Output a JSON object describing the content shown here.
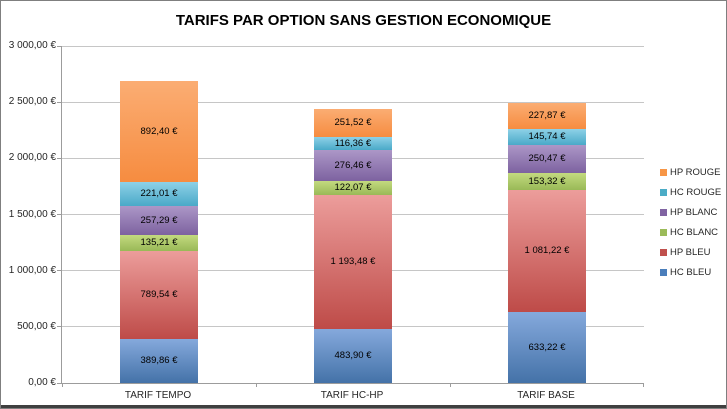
{
  "chart_data": {
    "type": "bar",
    "stacked": true,
    "title": "TARIFS PAR OPTION SANS GESTION ECONOMIQUE",
    "categories": [
      "TARIF TEMPO",
      "TARIF HC-HP",
      "TARIF BASE"
    ],
    "series": [
      {
        "name": "HC BLEU",
        "color": "#4A7EBB",
        "gradient": [
          "#85A9DC",
          "#4472A8"
        ],
        "values": [
          389.86,
          483.9,
          633.22
        ],
        "labels": [
          "389,86 €",
          "483,90 €",
          "633,22 €"
        ]
      },
      {
        "name": "HP BLEU",
        "color": "#C0504D",
        "gradient": [
          "#EC9D9B",
          "#BE4B48"
        ],
        "values": [
          789.54,
          1193.48,
          1081.22
        ],
        "labels": [
          "789,54 €",
          "1 193,48 €",
          "1 081,22 €"
        ]
      },
      {
        "name": "HC BLANC",
        "color": "#9BBB59",
        "gradient": [
          "#C3DA7F",
          "#99B957"
        ],
        "values": [
          135.21,
          122.07,
          153.32
        ],
        "labels": [
          "135,21 €",
          "122,07 €",
          "153,32 €"
        ]
      },
      {
        "name": "HP BLANC",
        "color": "#8064A2",
        "gradient": [
          "#AC97C7",
          "#7D62A0"
        ],
        "values": [
          257.29,
          276.46,
          250.47
        ],
        "labels": [
          "257,29 €",
          "276,46 €",
          "250,47 €"
        ]
      },
      {
        "name": "HC ROUGE",
        "color": "#4BACC6",
        "gradient": [
          "#8ED1E7",
          "#4AA9C8"
        ],
        "values": [
          221.01,
          116.36,
          145.74
        ],
        "labels": [
          "221,01 €",
          "116,36 €",
          "145,74 €"
        ]
      },
      {
        "name": "HP ROUGE",
        "color": "#F79646",
        "gradient": [
          "#FBAD73",
          "#F68C40"
        ],
        "values": [
          892.4,
          251.52,
          227.87
        ],
        "labels": [
          "892,40 €",
          "251,52 €",
          "227,87 €"
        ]
      }
    ],
    "legend": {
      "position": "right",
      "note": "order is reverse of stacking (top series first)"
    },
    "ylim": [
      0,
      3000
    ],
    "yticks": [
      {
        "value": 3000,
        "label": "3 000,00 €"
      },
      {
        "value": 2500,
        "label": "2 500,00 €"
      },
      {
        "value": 2000,
        "label": "2 000,00 €"
      },
      {
        "value": 1500,
        "label": "1 500,00 €"
      },
      {
        "value": 1000,
        "label": "1 000,00 €"
      },
      {
        "value": 500,
        "label": "500,00 €"
      },
      {
        "value": 0,
        "label": "0,00 €"
      }
    ],
    "grid": true,
    "xlabel": "",
    "ylabel": ""
  }
}
